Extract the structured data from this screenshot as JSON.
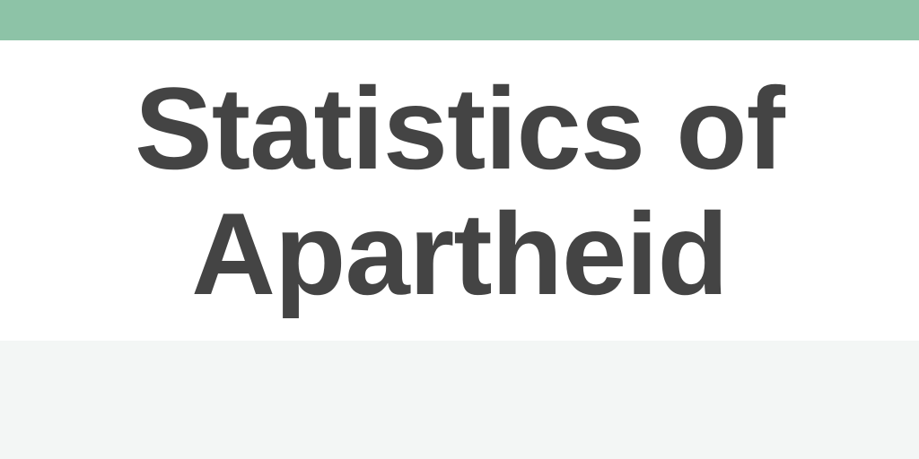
{
  "title": {
    "line1": "Statistics of",
    "line2": "Apartheid"
  },
  "colors": {
    "top_band": "#8dc3a7",
    "text": "#444444",
    "bottom_band": "#f3f6f5",
    "background": "#ffffff"
  }
}
